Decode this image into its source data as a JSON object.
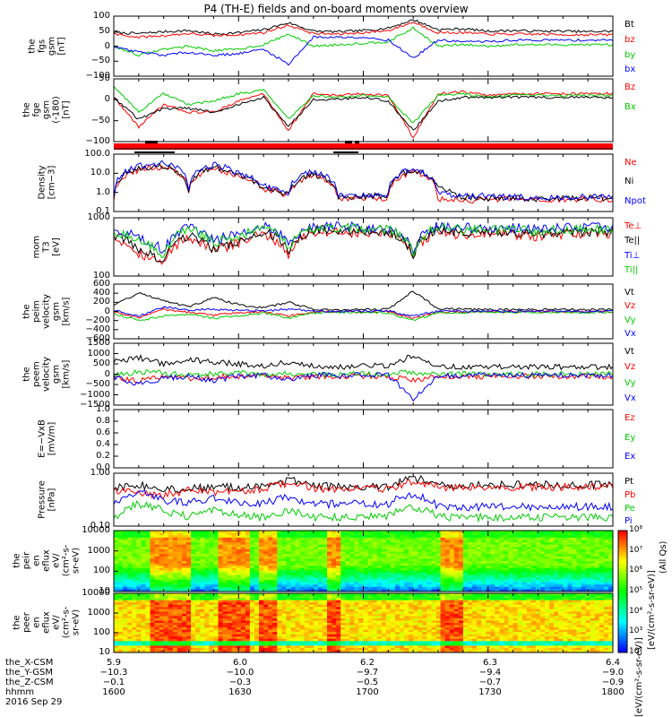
{
  "title": "P4 (TH-E) fields and on-board moments overview",
  "date": "2016 Sep 29",
  "colors": {
    "black": "#000000",
    "red": "#ff0000",
    "green": "#00cc00",
    "blue": "#0000ff"
  },
  "chart_data": [
    {
      "type": "line",
      "panel": "fgs",
      "ylabel": [
        "the",
        "fgs",
        "gsm",
        "[nT]"
      ],
      "ylim": [
        -100,
        100
      ],
      "yticks": [
        "100",
        "50",
        "0",
        "−50",
        "−100"
      ],
      "legend": [
        "Bt",
        "bz",
        "by",
        "bx"
      ],
      "series": [
        {
          "name": "Bt",
          "color": "black",
          "values": [
            45,
            42,
            48,
            52,
            40,
            45,
            55,
            78,
            50,
            48,
            52,
            60,
            88,
            55,
            58,
            50,
            52,
            50,
            50,
            48,
            50
          ]
        },
        {
          "name": "bz",
          "color": "red",
          "values": [
            40,
            30,
            35,
            42,
            35,
            38,
            45,
            70,
            42,
            40,
            45,
            52,
            80,
            45,
            45,
            40,
            40,
            40,
            38,
            38,
            38
          ]
        },
        {
          "name": "by",
          "color": "green",
          "values": [
            0,
            -30,
            -10,
            0,
            -15,
            -10,
            5,
            40,
            0,
            5,
            10,
            15,
            60,
            0,
            5,
            0,
            5,
            5,
            5,
            5,
            5
          ]
        },
        {
          "name": "bx",
          "color": "blue",
          "values": [
            -5,
            -20,
            -30,
            -20,
            -30,
            -25,
            -10,
            -60,
            30,
            30,
            30,
            20,
            -40,
            20,
            15,
            15,
            20,
            20,
            20,
            20,
            20
          ]
        }
      ]
    },
    {
      "type": "line",
      "panel": "fge",
      "ylabel": [
        "the",
        "fge",
        "gsm",
        "(-180)",
        "[nT]"
      ],
      "ylim": [
        -120,
        50
      ],
      "yticks": [
        "50",
        "0",
        "−50",
        "−100"
      ],
      "legend": [
        "Bz",
        "Bx"
      ],
      "series": [
        {
          "name": "Bz",
          "color": "red",
          "values": [
            0,
            -80,
            -20,
            -40,
            -40,
            -10,
            10,
            -90,
            10,
            5,
            10,
            5,
            -110,
            10,
            15,
            5,
            10,
            10,
            10,
            10,
            10
          ]
        },
        {
          "name": "Bx",
          "color": "green",
          "values": [
            30,
            -40,
            10,
            -20,
            -10,
            10,
            20,
            -60,
            5,
            0,
            5,
            0,
            -70,
            5,
            10,
            0,
            5,
            5,
            5,
            5,
            5
          ]
        },
        {
          "name": "black",
          "color": "black",
          "values": [
            0,
            -60,
            -30,
            -30,
            -40,
            -20,
            0,
            -80,
            -5,
            -5,
            0,
            -10,
            -90,
            -10,
            0,
            0,
            0,
            0,
            0,
            0,
            0
          ]
        }
      ]
    },
    {
      "type": "line",
      "panel": "density",
      "ylabel": [
        "Density",
        "[cm−3]"
      ],
      "ylog": true,
      "ylim": [
        0.1,
        200
      ],
      "yticks": [
        "100.0",
        "10.0",
        "1.0",
        "0.1"
      ],
      "legend": [
        "Ne",
        "Ni",
        "Npot"
      ],
      "series": [
        {
          "name": "Ne",
          "color": "red",
          "values": [
            0.5,
            25,
            35,
            1,
            30,
            10,
            2,
            0.8,
            12,
            0.5,
            0.6,
            0.6,
            20,
            0.5,
            0.4,
            0.5,
            0.5,
            0.4,
            0.5,
            0.5,
            0.5
          ]
        },
        {
          "name": "Ni",
          "color": "black",
          "values": [
            0.6,
            30,
            40,
            1.2,
            35,
            12,
            2.2,
            1,
            14,
            0.6,
            0.8,
            0.8,
            25,
            2,
            0.6,
            0.6,
            0.6,
            0.5,
            0.6,
            0.6,
            0.6
          ]
        },
        {
          "name": "Npot",
          "color": "blue",
          "values": [
            0.7,
            40,
            60,
            1.5,
            50,
            15,
            3,
            1.2,
            20,
            0.8,
            0.9,
            1,
            30,
            1,
            0.8,
            0.8,
            0.7,
            0.6,
            0.7,
            0.7,
            0.7
          ]
        }
      ]
    },
    {
      "type": "line",
      "panel": "temperature",
      "ylabel": [
        "mom",
        "T3",
        "[eV]"
      ],
      "ylog": true,
      "ylim": [
        60,
        8000
      ],
      "yticks": [
        "1000",
        "100"
      ],
      "legend": [
        "Te⊥",
        "Te||",
        "Ti⊥",
        "Ti||"
      ],
      "series": [
        {
          "name": "Te⊥",
          "color": "red",
          "values": [
            1500,
            400,
            150,
            1500,
            500,
            900,
            2000,
            300,
            2500,
            2500,
            2000,
            2200,
            200,
            2500,
            1800,
            2200,
            2000,
            1500,
            2000,
            2200,
            2200
          ]
        },
        {
          "name": "Te||",
          "color": "black",
          "values": [
            2000,
            500,
            200,
            1800,
            600,
            1000,
            2500,
            400,
            3000,
            3000,
            2500,
            2500,
            300,
            3000,
            2200,
            2500,
            2500,
            2000,
            2500,
            2500,
            2500
          ]
        },
        {
          "name": "Ti⊥",
          "color": "blue",
          "values": [
            3000,
            1500,
            500,
            3500,
            1200,
            2000,
            4000,
            800,
            4000,
            4000,
            3500,
            3500,
            500,
            4000,
            3500,
            3500,
            3500,
            3000,
            3500,
            3500,
            3500
          ]
        },
        {
          "name": "Ti||",
          "color": "green",
          "values": [
            2500,
            1200,
            300,
            3000,
            1000,
            1500,
            3500,
            600,
            3500,
            3500,
            3000,
            3000,
            400,
            3500,
            3000,
            3000,
            3000,
            2500,
            3000,
            3000,
            3000
          ]
        }
      ]
    },
    {
      "type": "line",
      "panel": "peim-velocity",
      "ylabel": [
        "the",
        "peim",
        "velocity",
        "gsm",
        "[km/s]"
      ],
      "ylim": [
        -600,
        600
      ],
      "yticks": [
        "600",
        "400",
        "200",
        "0",
        "−200",
        "−400",
        "−600"
      ],
      "legend": [
        "Vt",
        "Vz",
        "Vy",
        "Vx"
      ],
      "series": [
        {
          "name": "Vt",
          "color": "black",
          "values": [
            150,
            400,
            250,
            100,
            300,
            150,
            80,
            200,
            50,
            30,
            40,
            50,
            450,
            60,
            50,
            40,
            40,
            40,
            50,
            40,
            40
          ]
        },
        {
          "name": "Vz",
          "color": "red",
          "values": [
            0,
            -150,
            50,
            -20,
            -80,
            -30,
            -10,
            -100,
            -10,
            -5,
            -10,
            -10,
            -150,
            -10,
            -10,
            -5,
            -5,
            -5,
            -5,
            -5,
            -5
          ]
        },
        {
          "name": "Vy",
          "color": "green",
          "values": [
            -50,
            -200,
            -100,
            -50,
            -150,
            -100,
            -30,
            -150,
            -30,
            -20,
            -20,
            -30,
            -200,
            -20,
            -20,
            -20,
            -20,
            -20,
            -20,
            -20,
            -20
          ]
        },
        {
          "name": "Vx",
          "color": "blue",
          "values": [
            20,
            -100,
            100,
            30,
            50,
            20,
            10,
            50,
            10,
            5,
            10,
            5,
            -100,
            5,
            5,
            5,
            5,
            5,
            5,
            5,
            5
          ]
        }
      ]
    },
    {
      "type": "line",
      "panel": "peem-velocity",
      "ylabel": [
        "the",
        "peem",
        "velocity",
        "gsm",
        "[km/s]"
      ],
      "ylim": [
        -1500,
        1500
      ],
      "yticks": [
        "1500",
        "1000",
        "500",
        "0",
        "−500",
        "−1000",
        "−1500"
      ],
      "legend": [
        "Vt",
        "Vz",
        "Vy",
        "Vx"
      ],
      "series": [
        {
          "name": "Vt",
          "color": "black",
          "values": [
            600,
            800,
            500,
            700,
            600,
            500,
            400,
            600,
            400,
            350,
            400,
            400,
            900,
            400,
            350,
            350,
            350,
            350,
            350,
            350,
            350
          ]
        },
        {
          "name": "Vz",
          "color": "red",
          "values": [
            -200,
            -300,
            -100,
            -200,
            -150,
            -100,
            -100,
            -200,
            -100,
            -100,
            -100,
            -100,
            -300,
            -100,
            -100,
            -100,
            -100,
            -100,
            -100,
            -100,
            -100
          ]
        },
        {
          "name": "Vy",
          "color": "green",
          "values": [
            0,
            100,
            50,
            -50,
            0,
            50,
            0,
            50,
            0,
            0,
            0,
            0,
            100,
            0,
            0,
            0,
            0,
            0,
            0,
            0,
            0
          ]
        },
        {
          "name": "Vx",
          "color": "blue",
          "values": [
            -100,
            -500,
            -200,
            -100,
            -300,
            -100,
            -50,
            -300,
            -50,
            -50,
            -50,
            -50,
            -1200,
            -50,
            -50,
            -50,
            -50,
            -50,
            -50,
            -50,
            -50
          ]
        }
      ]
    },
    {
      "type": "line",
      "panel": "efield",
      "ylabel": [
        "E=−VxB",
        "[mV/m]"
      ],
      "ylim": [
        0,
        1
      ],
      "yticks": [
        "1.0",
        "0.8",
        "0.6",
        "0.4",
        "0.2",
        "0.0"
      ],
      "legend": [
        "Ez",
        "Ey",
        "Ex"
      ],
      "series": []
    },
    {
      "type": "line",
      "panel": "pressure",
      "ylabel": [
        "Pressure",
        "[nPa]"
      ],
      "ylog": true,
      "ylim": [
        0.02,
        5
      ],
      "yticks": [
        "1.00",
        "0.10"
      ],
      "legend": [
        "Pt",
        "Pb",
        "Pe",
        "Pi"
      ],
      "series": [
        {
          "name": "Pt",
          "color": "black",
          "values": [
            1.0,
            1.5,
            0.9,
            1.0,
            1.2,
            1.1,
            1.3,
            2.5,
            1.3,
            1.2,
            1.2,
            1.2,
            3.0,
            1.5,
            1.4,
            1.4,
            1.5,
            1.5,
            1.5,
            1.5,
            1.5
          ]
        },
        {
          "name": "Pb",
          "color": "red",
          "values": [
            0.8,
            0.6,
            0.5,
            0.8,
            0.7,
            0.7,
            1.0,
            1.8,
            1.0,
            1.0,
            1.0,
            1.0,
            2.0,
            1.2,
            1.1,
            1.1,
            1.2,
            1.2,
            1.2,
            1.2,
            1.2
          ]
        },
        {
          "name": "Pe",
          "color": "green",
          "values": [
            0.04,
            0.2,
            0.1,
            0.05,
            0.1,
            0.06,
            0.05,
            0.1,
            0.05,
            0.05,
            0.05,
            0.06,
            0.15,
            0.05,
            0.05,
            0.05,
            0.05,
            0.05,
            0.05,
            0.05,
            0.05
          ]
        },
        {
          "name": "Pi",
          "color": "blue",
          "values": [
            0.15,
            0.8,
            0.3,
            0.2,
            0.4,
            0.2,
            0.2,
            0.4,
            0.2,
            0.2,
            0.2,
            0.2,
            0.6,
            0.15,
            0.15,
            0.15,
            0.15,
            0.15,
            0.15,
            0.15,
            0.15
          ]
        }
      ]
    },
    {
      "type": "heatmap",
      "panel": "peir-eflux",
      "ylabel": [
        "the",
        "peir",
        "en",
        "eflux",
        "eV/",
        "(cm²-s-",
        "sr-eV)"
      ],
      "ylog": true,
      "ylim": [
        7,
        20000
      ],
      "yticks": [
        "10000",
        "1000",
        "100",
        "10"
      ]
    },
    {
      "type": "heatmap",
      "panel": "peer-eflux",
      "ylabel": [
        "the",
        "peer",
        "en",
        "eflux",
        "eV/",
        "(cm²-s-",
        "sr-eV)"
      ],
      "ylog": true,
      "ylim": [
        7,
        20000
      ],
      "yticks": [
        "10000",
        "1000",
        "100",
        "10"
      ]
    }
  ],
  "colorbar": {
    "ticks": [
      "10⁸",
      "10⁷",
      "10⁶",
      "10⁵",
      "10⁴",
      "10³",
      "10²"
    ],
    "unit_top": "[eV/(cm²-s-sr-eV)]",
    "unit_mid": "(All Qs)",
    "unit_bottom": "[eV/(cm²-s-sr-eV)]"
  },
  "xaxis": {
    "rows": [
      {
        "label": "the_X-CSM",
        "values": [
          "5.9",
          "6.0",
          "6.2",
          "6.3",
          "6.4"
        ]
      },
      {
        "label": "the_Y-GSM",
        "values": [
          "−10.3",
          "−10.0",
          "−9.7",
          "−9.4",
          "−9.0"
        ]
      },
      {
        "label": "the_Z-CSM",
        "values": [
          "−0.1",
          "−0.3",
          "−0.5",
          "−0.7",
          "−0.9"
        ]
      },
      {
        "label": "hhmm",
        "values": [
          "1600",
          "1630",
          "1700",
          "1730",
          "1800"
        ]
      }
    ]
  }
}
